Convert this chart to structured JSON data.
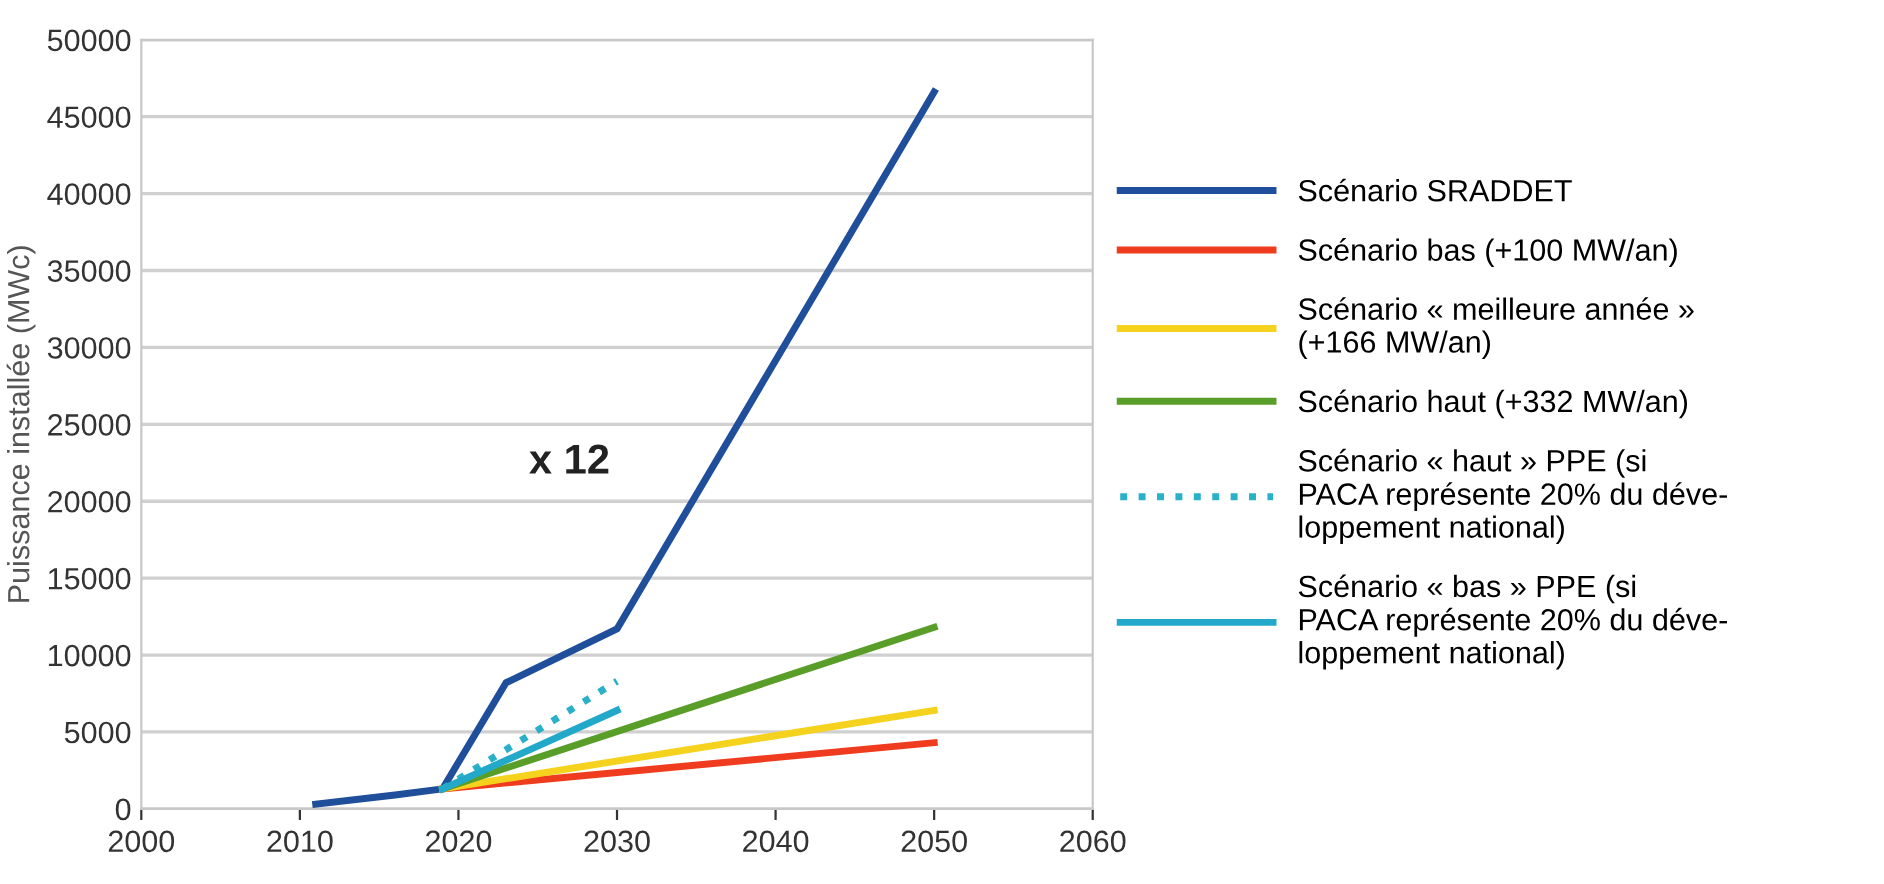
{
  "chart_data": {
    "type": "line",
    "ylabel": "Puissance installée (MWc)",
    "xlim": [
      2000,
      2060
    ],
    "xticks": [
      2000,
      2010,
      2020,
      2030,
      2040,
      2050,
      2060
    ],
    "ylim": [
      0,
      50000
    ],
    "yticks": [
      0,
      5000,
      10000,
      15000,
      20000,
      25000,
      30000,
      35000,
      40000,
      45000,
      50000
    ],
    "grid": "y",
    "legend": "right",
    "annotations": [
      "x 12"
    ],
    "series": [
      {
        "name": "Scénario SRADDET",
        "color": "#1f4e9a",
        "x": [
          2011,
          2016,
          2019,
          2023,
          2030,
          2050
        ],
        "values": [
          300,
          900,
          1300,
          8200,
          11700,
          46600
        ]
      },
      {
        "name": "Scénario bas (+100 MW/an)",
        "color": "#f03c1e",
        "x": [
          2019,
          2050
        ],
        "values": [
          1300,
          4300
        ]
      },
      {
        "name": "Scénario « meilleure année »\n(+166 MW/an)",
        "color": "#f5d21e",
        "x": [
          2019,
          2050
        ],
        "values": [
          1300,
          6400
        ]
      },
      {
        "name": "Scénario haut (+332 MW/an)",
        "color": "#5a9e2a",
        "x": [
          2019,
          2050
        ],
        "values": [
          1300,
          11800
        ]
      },
      {
        "name": "Scénario « haut » PPE (si\nPACA représente 20% du déve-\nloppement national)",
        "color": "#2ab0c8",
        "line_style": "dotted",
        "x": [
          2019,
          2030
        ],
        "values": [
          1300,
          8300
        ]
      },
      {
        "name": "Scénario « bas » PPE (si\nPACA représente 20% du déve-\nloppement national)",
        "color": "#22a8c8",
        "line_style": "solid",
        "x": [
          2019,
          2030
        ],
        "values": [
          1300,
          6400
        ]
      }
    ]
  }
}
